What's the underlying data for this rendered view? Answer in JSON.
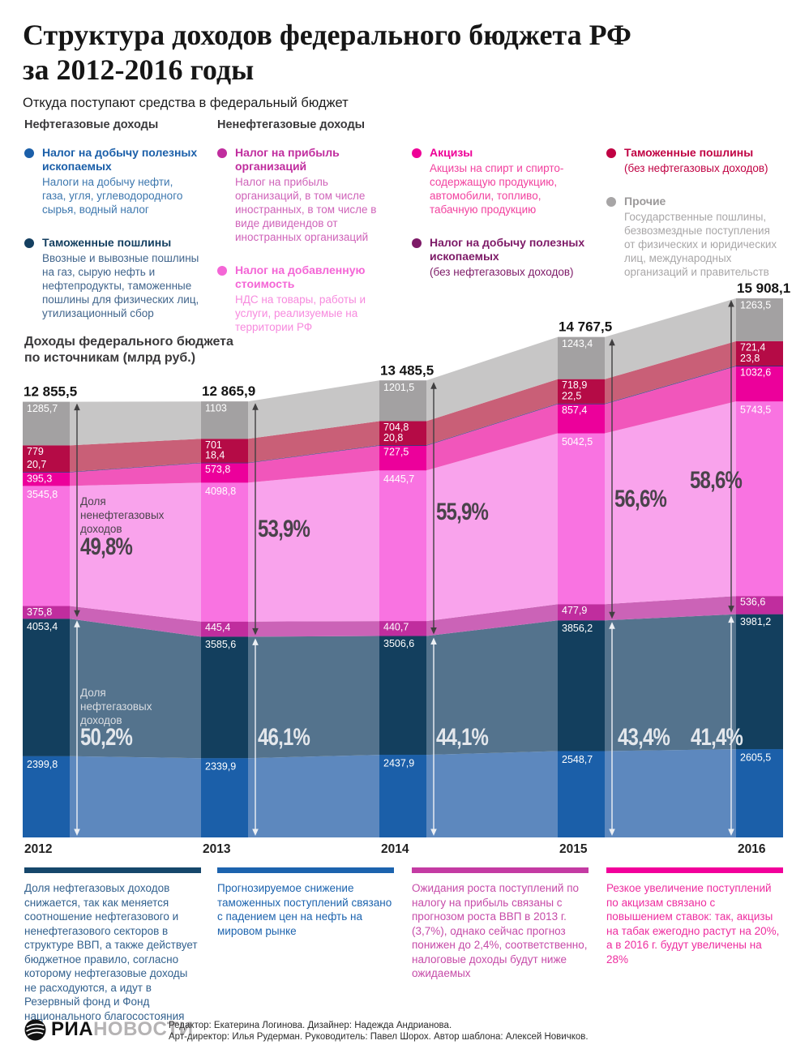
{
  "header": {
    "title_line1": "Структура доходов федерального бюджета РФ",
    "title_line2": "за 2012-2016 годы",
    "subtitle": "Откуда поступают средства в федеральный бюджет"
  },
  "legend": {
    "columns": [
      {
        "header": "Нефтегазовые доходы",
        "items": [
          {
            "title": "Налог на добычу полезных ископаемых",
            "subtitle": "Налоги на добычу нефти, газа, угля, углеводородного сырья, водный налог",
            "dot_color": "#1b5fa9",
            "title_color": "#1b5fa9",
            "text_color": "#3d77ae"
          },
          {
            "title": "Таможенные пошлины",
            "subtitle": "Ввозные и вывозные пошлины на газ, сырую нефть и нефтепродукты, таможенные пошлины для физических лиц, утилизационный сбор",
            "dot_color": "#143f60",
            "title_color": "#143f60",
            "text_color": "#41658c"
          }
        ]
      },
      {
        "header": "Ненефтегазовые доходы",
        "items": [
          {
            "title": "Налог на прибыль организаций",
            "subtitle": "Налог на прибыль организаций, в том числе иностранных, в том числе в виде дивидендов от иностранных организаций",
            "dot_color": "#c02d9e",
            "title_color": "#c02d9e",
            "text_color": "#cf63b9"
          },
          {
            "title": "Налог на добавленную стоимость",
            "subtitle": "НДС на товары, работы и услуги, реализуемые на территории РФ",
            "dot_color": "#f466d6",
            "title_color": "#f466d6",
            "text_color": "#f78ade"
          }
        ]
      },
      {
        "header": "",
        "items": [
          {
            "title": "Акцизы",
            "subtitle": "Акцизы на спирт и спирто-содержащую продукцию, автомобили, топливо, табачную продукцию",
            "dot_color": "#ee0097",
            "title_color": "#ee0097",
            "text_color": "#f2429f"
          },
          {
            "title": "Налог на добычу полезных ископаемых",
            "subtitle": "(без нефтегазовых доходов)",
            "dot_color": "#7d1a67",
            "title_color": "#7d1a67",
            "text_color": "#7d1a67"
          }
        ]
      },
      {
        "header": "",
        "items": [
          {
            "title": "Таможенные пошлины",
            "subtitle": "(без нефтегазовых доходов)",
            "dot_color": "#c00243",
            "title_color": "#c00243",
            "text_color": "#c00243"
          },
          {
            "title": "Прочие",
            "subtitle": "Государственные пошлины, безвозмездные поступления от физических и юридических лиц, международных организаций и правительств",
            "dot_color": "#a7a5a6",
            "title_color": "#9b999a",
            "text_color": "#a9a7a8"
          }
        ]
      }
    ]
  },
  "chart_data": {
    "type": "stacked-area",
    "title_line1": "Доходы федерального бюджета",
    "title_line2": "по источникам (млрд руб.)",
    "unit": "млрд руб.",
    "categories": [
      "2012",
      "2013",
      "2014",
      "2015",
      "2016"
    ],
    "totals": [
      12855.5,
      12865.9,
      13485.5,
      14767.5,
      15908.1
    ],
    "totals_display": [
      "12 855,5",
      "12 865,9",
      "13 485,5",
      "14 767,5",
      "15 908,1"
    ],
    "series": [
      {
        "id": "ndpi-oil",
        "name": "Налог на добычу полезных ископаемых (нефтегазовые)",
        "color_column": "#1b5fa9",
        "color_flow": "#5d88be",
        "values": [
          2399.8,
          2339.9,
          2437.9,
          2548.7,
          2605.5
        ],
        "labels": [
          "2399,8",
          "2339,9",
          "2437,9",
          "2548,7",
          "2605,5"
        ]
      },
      {
        "id": "customs-oil",
        "name": "Таможенные пошлины (нефтегазовые)",
        "color_column": "#133f5e",
        "color_flow": "#54738d",
        "values": [
          4053.4,
          3585.6,
          3506.6,
          3856.2,
          3981.2
        ],
        "labels": [
          "4053,4",
          "3585,6",
          "3506,6",
          "3856,2",
          "3981,2"
        ]
      },
      {
        "id": "profit-tax",
        "name": "Налог на прибыль организаций",
        "color_column": "#c02d9e",
        "color_flow": "#cb63b7",
        "values": [
          375.8,
          445.4,
          440.7,
          477.9,
          536.6
        ],
        "labels": [
          "375,8",
          "445,4",
          "440,7",
          "477,9",
          "536,6"
        ]
      },
      {
        "id": "vat",
        "name": "Налог на добавленную стоимость",
        "color_column": "#f973e1",
        "color_flow": "#f9a3ec",
        "values": [
          3545.8,
          4098.8,
          4445.7,
          5042.5,
          5743.5
        ],
        "labels": [
          "3545,8",
          "4098,8",
          "4445,7",
          "5042,5",
          "5743,5"
        ]
      },
      {
        "id": "excise",
        "name": "Акцизы",
        "color_column": "#ec009b",
        "color_flow": "#f156bb",
        "values": [
          395.3,
          573.8,
          727.5,
          857.4,
          1032.6
        ],
        "labels": [
          "395,3",
          "573,8",
          "727,5",
          "857,4",
          "1032,6"
        ]
      },
      {
        "id": "ndpi-nonoil",
        "name": "Налог на добычу полезных ископаемых (без нефтегазовых доходов)",
        "color_column": "#3c2f71",
        "color_flow": "#5a4d8e",
        "values": [
          20.7,
          18.4,
          20.8,
          22.5,
          23.8
        ],
        "labels": [
          "20,7",
          "18,4",
          "20,8",
          "22,5",
          "23,8"
        ]
      },
      {
        "id": "customs-nonoil",
        "name": "Таможенные пошлины (без нефтегазовых доходов)",
        "color_column": "#b50b46",
        "color_flow": "#c95f77",
        "values": [
          779,
          701,
          704.8,
          718.9,
          721.4
        ],
        "labels": [
          "779",
          "701",
          "704,8",
          "718,9",
          "721,4"
        ]
      },
      {
        "id": "other",
        "name": "Прочие",
        "color_column": "#a3a1a2",
        "color_flow": "#c7c6c6",
        "values": [
          1285.7,
          1103,
          1201.5,
          1243.4,
          1263.5
        ],
        "labels": [
          "1285,7",
          "1103",
          "1201,5",
          "1243,4",
          "1263,5"
        ]
      }
    ],
    "nonoil_share_caption": [
      "Доля",
      "ненефтегазовых",
      "доходов"
    ],
    "oil_share_caption": [
      "Доля",
      "нефтегазовых",
      "доходов"
    ],
    "nonoil_share": [
      "49,8%",
      "53,9%",
      "55,9%",
      "56,6%",
      "58,6%"
    ],
    "oil_share": [
      "50,2%",
      "46,1%",
      "44,1%",
      "43,4%",
      "41,4%"
    ],
    "legend_position": "top",
    "grid": false
  },
  "notes": [
    {
      "bar_color": "#16476b",
      "text_color": "#33618e",
      "text": "Доля нефтегазовых доходов снижается, так как меняется соотношение нефтегазового и ненефтегазового секторов в структуре ВВП, а также действует бюджетное правило, согласно которому нефтегазовые доходы не расходуются, а идут в Резервный фонд и Фонд национального благосостояния"
    },
    {
      "bar_color": "#1c63ae",
      "text_color": "#1c63ae",
      "text": "Прогнозируемое снижение таможенных поступлений связано с падением цен на нефть на мировом рынке"
    },
    {
      "bar_color": "#c43ba3",
      "text_color": "#c64ba8",
      "text": "Ожидания роста поступлений по налогу на прибыль связаны с прогнозом роста ВВП в 2013 г. (3,7%), однако сейчас прогноз понижен до 2,4%, соответственно, налоговые доходы будут ниже ожидаемых"
    },
    {
      "bar_color": "#f2009b",
      "text_color": "#ee2d9f",
      "text": "Резкое увеличение поступлений по акцизам связано с повышением ставок: так, акцизы на табак ежегодно растут на 20%, а в 2016 г. будут увеличены на 28%"
    }
  ],
  "footer": {
    "logo_ria": "РИА",
    "logo_novosti": "НОВОСТИ",
    "credits_line1": "Редактор: Екатерина Логинова. Дизайнер: Надежда Андрианова.",
    "credits_line2": "Арт-директор: Илья Рудерман. Руководитель: Павел Шорох. Автор шаблона: Алексей Новичков."
  }
}
